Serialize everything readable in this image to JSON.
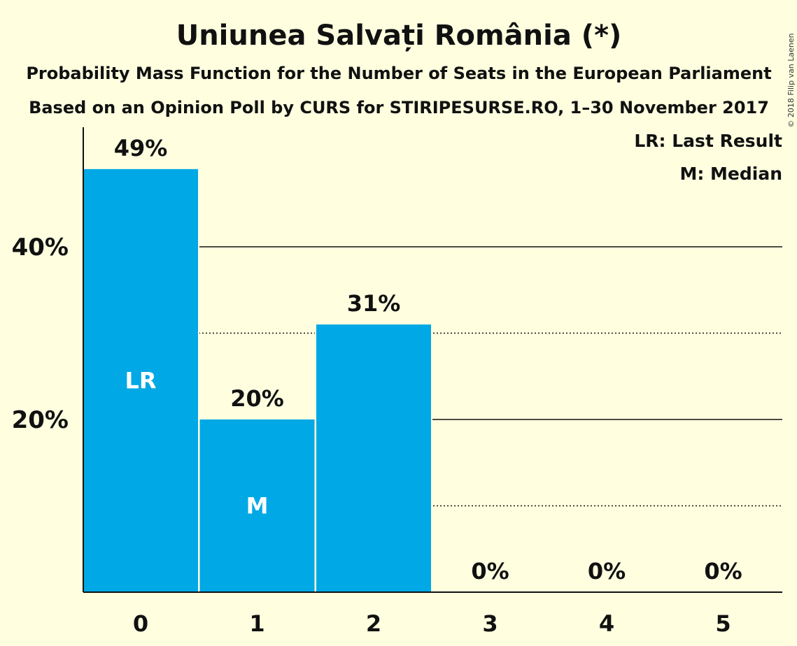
{
  "chart_data": {
    "type": "bar",
    "title": "Uniunea Salvați România (*)",
    "subtitle": "Probability Mass Function for the Number of Seats in the European Parliament",
    "subtitle2": "Based on an Opinion Poll by CURS for STIRIPESURSE.RO, 1–30 November 2017",
    "categories": [
      "0",
      "1",
      "2",
      "3",
      "4",
      "5"
    ],
    "values": [
      49,
      20,
      31,
      0,
      0,
      0
    ],
    "value_labels": [
      "49%",
      "20%",
      "31%",
      "0%",
      "0%",
      "0%"
    ],
    "bar_markers": [
      {
        "index": 0,
        "text": "LR"
      },
      {
        "index": 1,
        "text": "M"
      }
    ],
    "legend": [
      "LR: Last Result",
      "M: Median"
    ],
    "legend_position": "top-right",
    "ytick_values": [
      20,
      40
    ],
    "ytick_labels": [
      "20%",
      "40%"
    ],
    "solid_grid": [
      20,
      40
    ],
    "dotted_grid": [
      10,
      30
    ],
    "ylim": [
      0,
      53.7
    ],
    "bar_color": "#00a8e6",
    "background_color": "#ffffe0",
    "copyright": "© 2018 Filip van Laenen"
  }
}
